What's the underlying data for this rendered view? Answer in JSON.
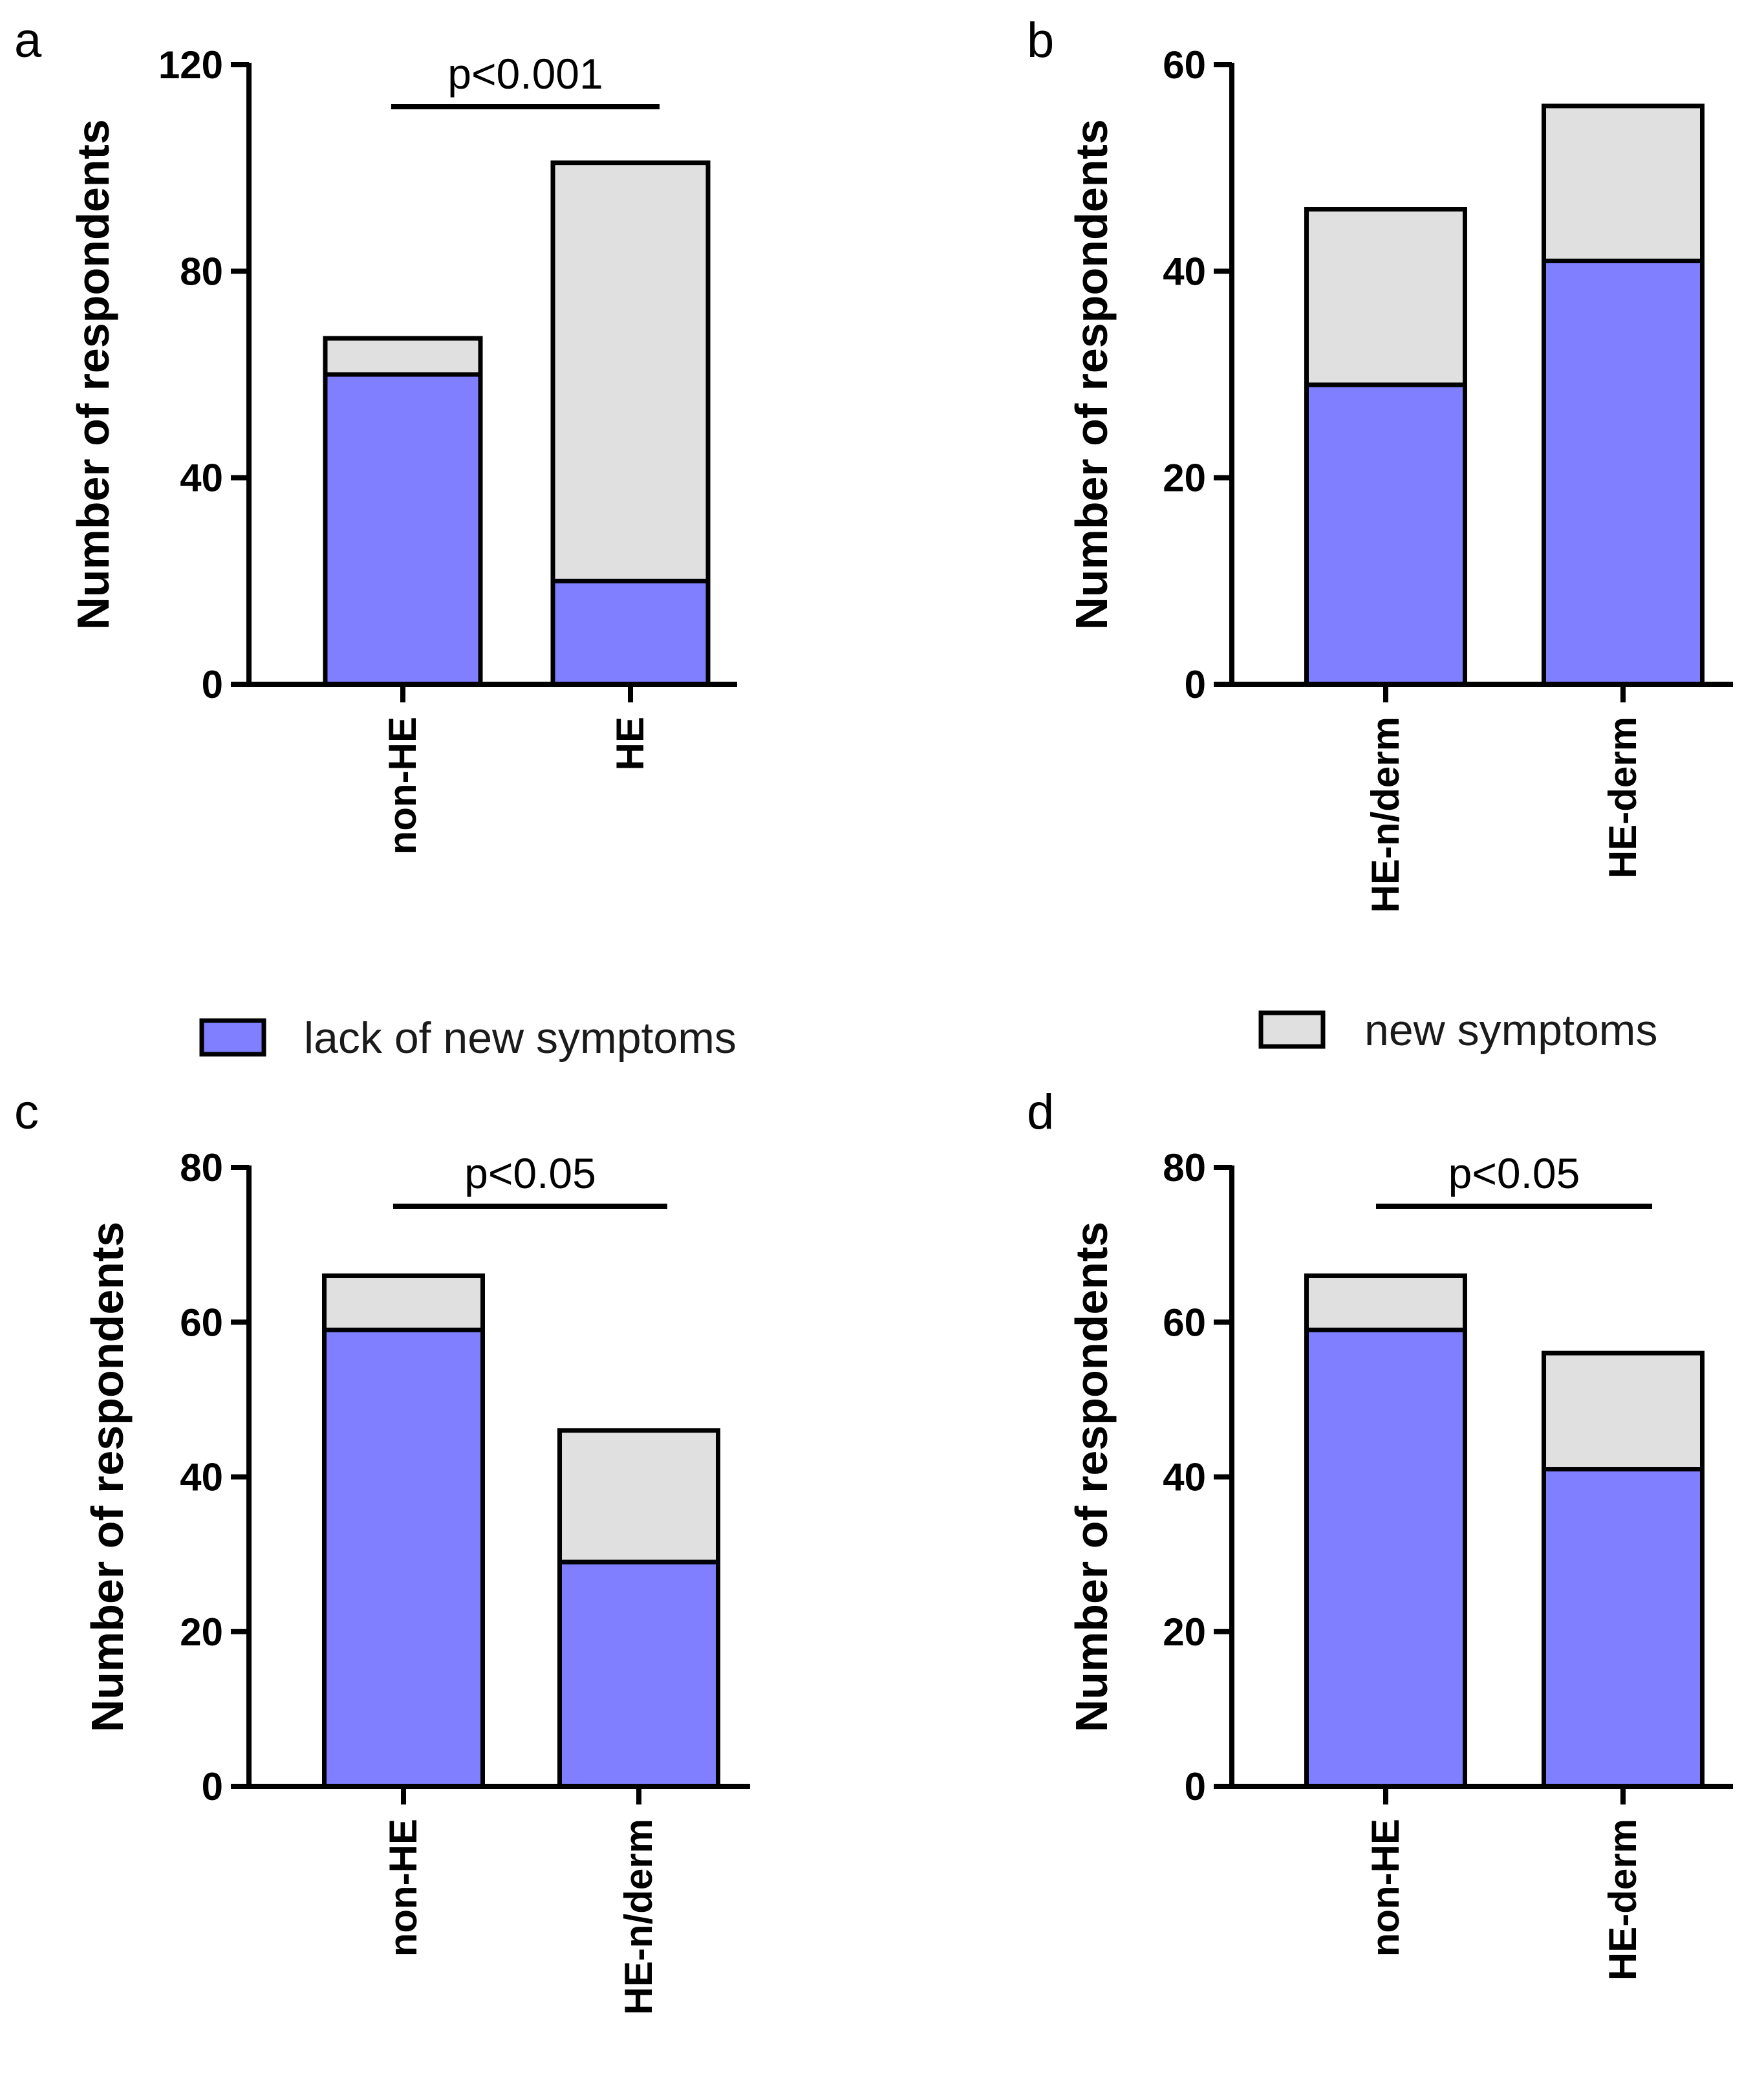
{
  "legend": {
    "items": [
      {
        "label": "lack of new symptoms",
        "color": "#7f7fff"
      },
      {
        "label": "new symptoms",
        "color": "#e0e0e0"
      }
    ]
  },
  "chart_data": [
    {
      "panel": "a",
      "type": "bar",
      "stacked": true,
      "ylabel": "Number of respondents",
      "ylim": [
        0,
        120
      ],
      "yticks": [
        0,
        40,
        80,
        120
      ],
      "categories": [
        "non-HE",
        "HE"
      ],
      "series": [
        {
          "name": "lack of new symptoms",
          "values": [
            60,
            20
          ]
        },
        {
          "name": "new symptoms",
          "values": [
            7,
            81
          ]
        }
      ],
      "significance": {
        "label": "p<0.001",
        "between": [
          "non-HE",
          "HE"
        ]
      }
    },
    {
      "panel": "b",
      "type": "bar",
      "stacked": true,
      "ylabel": "Number of respondents",
      "ylim": [
        0,
        60
      ],
      "yticks": [
        0,
        20,
        40,
        60
      ],
      "categories": [
        "HE-n/derm",
        "HE-derm"
      ],
      "series": [
        {
          "name": "lack of new symptoms",
          "values": [
            29,
            41
          ]
        },
        {
          "name": "new symptoms",
          "values": [
            17,
            15
          ]
        }
      ],
      "significance": null
    },
    {
      "panel": "c",
      "type": "bar",
      "stacked": true,
      "ylabel": "Number of respondents",
      "ylim": [
        0,
        80
      ],
      "yticks": [
        0,
        20,
        40,
        60,
        80
      ],
      "categories": [
        "non-HE",
        "HE-n/derm"
      ],
      "series": [
        {
          "name": "lack of new symptoms",
          "values": [
            59,
            29
          ]
        },
        {
          "name": "new symptoms",
          "values": [
            7,
            17
          ]
        }
      ],
      "significance": {
        "label": "p<0.05",
        "between": [
          "non-HE",
          "HE-n/derm"
        ]
      }
    },
    {
      "panel": "d",
      "type": "bar",
      "stacked": true,
      "ylabel": "Number of respondents",
      "ylim": [
        0,
        80
      ],
      "yticks": [
        0,
        20,
        40,
        60,
        80
      ],
      "categories": [
        "non-HE",
        "HE-derm"
      ],
      "series": [
        {
          "name": "lack of new symptoms",
          "values": [
            59,
            41
          ]
        },
        {
          "name": "new symptoms",
          "values": [
            7,
            15
          ]
        }
      ],
      "significance": {
        "label": "p<0.05",
        "between": [
          "non-HE",
          "HE-derm"
        ]
      }
    }
  ]
}
